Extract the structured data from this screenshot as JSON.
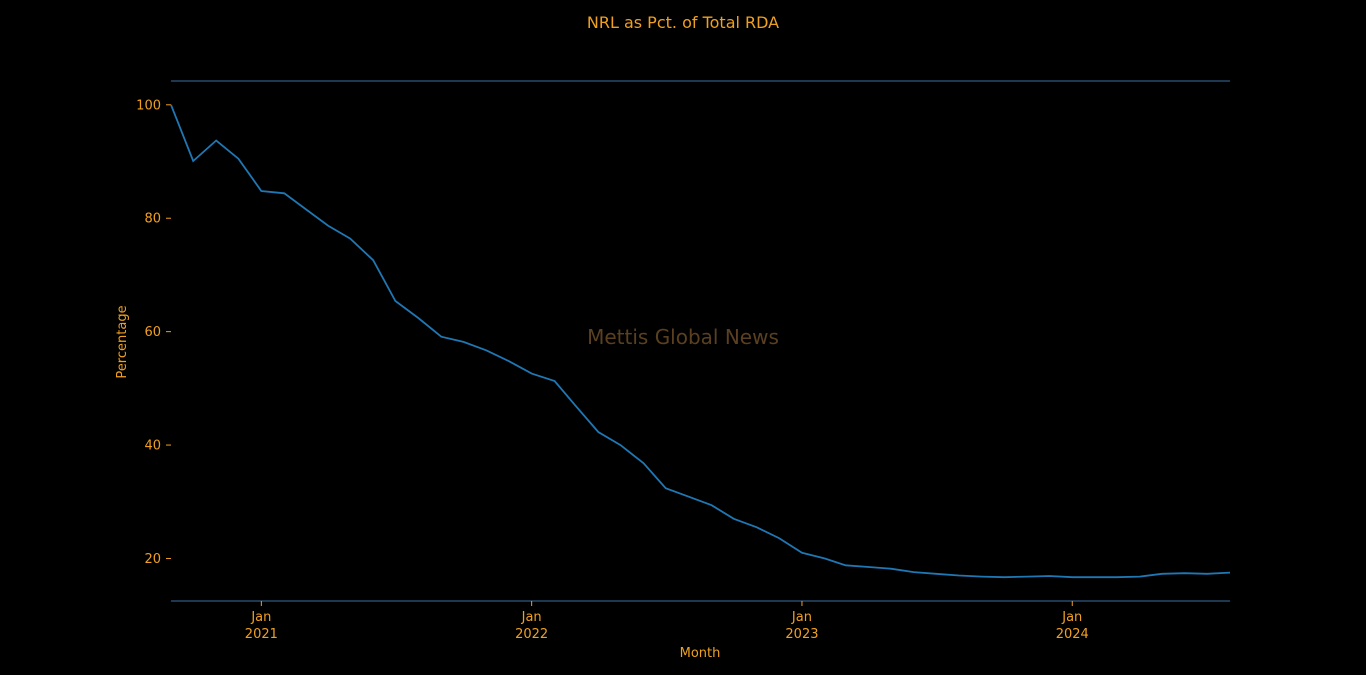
{
  "chart_data": {
    "type": "line",
    "title": "NRL as Pct. of Total RDA",
    "xlabel": "Month",
    "ylabel": "Percentage",
    "watermark": "Mettis Global News",
    "line_color": "#1f77b4",
    "text_color": "#f0a020",
    "background": "#000000",
    "grid": false,
    "ylim": [
      12.5,
      104.2
    ],
    "xlim": [
      "2020-09-01",
      "2024-08-01"
    ],
    "yticks": [
      20,
      40,
      60,
      80,
      100
    ],
    "xticks": [
      {
        "date": "2021-01-01",
        "line1": "Jan",
        "line2": "2021"
      },
      {
        "date": "2022-01-01",
        "line1": "Jan",
        "line2": "2022"
      },
      {
        "date": "2023-01-01",
        "line1": "Jan",
        "line2": "2023"
      },
      {
        "date": "2024-01-01",
        "line1": "Jan",
        "line2": "2024"
      }
    ],
    "series": [
      {
        "x": [
          "2020-09",
          "2020-10",
          "2020-11",
          "2020-12",
          "2021-01",
          "2021-02",
          "2021-03",
          "2021-04",
          "2021-05",
          "2021-06",
          "2021-07",
          "2021-08",
          "2021-09",
          "2021-10",
          "2021-11",
          "2021-12",
          "2022-01",
          "2022-02",
          "2022-03",
          "2022-04",
          "2022-05",
          "2022-06",
          "2022-07",
          "2022-08",
          "2022-09",
          "2022-10",
          "2022-11",
          "2022-12",
          "2023-01",
          "2023-02",
          "2023-03",
          "2023-04",
          "2023-05",
          "2023-06",
          "2023-07",
          "2023-08",
          "2023-09",
          "2023-10",
          "2023-11",
          "2023-12",
          "2024-01",
          "2024-02",
          "2024-03",
          "2024-04",
          "2024-05",
          "2024-06",
          "2024-07",
          "2024-08"
        ],
        "values": [
          100.0,
          90.1,
          93.7,
          90.5,
          84.8,
          84.4,
          81.7,
          78.7,
          76.4,
          72.6,
          65.4,
          62.4,
          59.1,
          58.2,
          56.7,
          54.8,
          52.6,
          51.3,
          47.0,
          42.3,
          40.0,
          36.8,
          32.4,
          30.9,
          29.4,
          27.0,
          25.5,
          23.6,
          21.0,
          20.0,
          18.8,
          18.5,
          18.2,
          17.6,
          17.3,
          17.0,
          16.8,
          16.7,
          16.8,
          16.9,
          16.7,
          16.7,
          16.7,
          16.8,
          17.3,
          17.4,
          17.3,
          17.5
        ]
      }
    ]
  }
}
